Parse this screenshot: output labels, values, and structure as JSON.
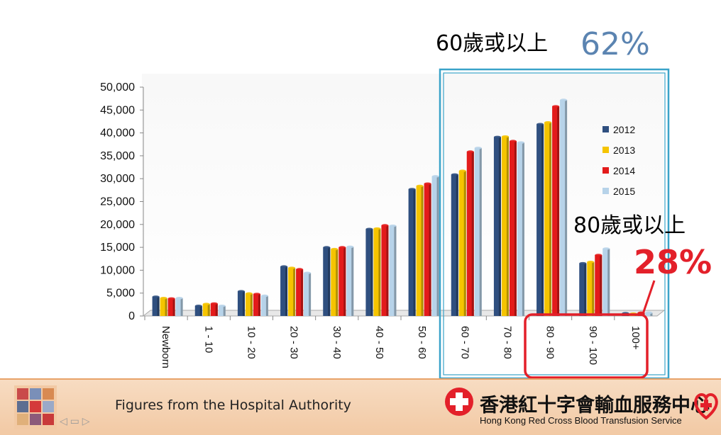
{
  "chart_data": {
    "type": "bar",
    "categories": [
      "Newborn",
      "1 - 10",
      "10 - 20",
      "20 - 30",
      "30 - 40",
      "40 - 50",
      "50 - 60",
      "60 - 70",
      "70 - 80",
      "80 - 90",
      "90 - 100",
      "100+"
    ],
    "series": [
      {
        "name": "2012",
        "color": "#2f4f7f",
        "values": [
          4200,
          2200,
          5400,
          10800,
          15000,
          19000,
          27700,
          30900,
          39100,
          41900,
          11500,
          600
        ]
      },
      {
        "name": "2013",
        "color": "#f5c400",
        "values": [
          3900,
          2600,
          4900,
          10500,
          14600,
          19100,
          28400,
          31700,
          39200,
          42300,
          11800,
          500
        ]
      },
      {
        "name": "2014",
        "color": "#e31b1b",
        "values": [
          3800,
          2700,
          4800,
          10200,
          15000,
          19800,
          28900,
          35900,
          38200,
          45800,
          13300,
          700
        ]
      },
      {
        "name": "2015",
        "color": "#b7d3e9",
        "values": [
          3900,
          2200,
          4400,
          9400,
          15100,
          19700,
          30500,
          36700,
          37900,
          47200,
          14700,
          700
        ]
      }
    ],
    "yticks": [
      "50,000",
      "45,000",
      "40,000",
      "35,000",
      "30,000",
      "25,000",
      "20,000",
      "15,000",
      "10,000",
      "5,000",
      "0"
    ],
    "ylim": [
      0,
      50000
    ],
    "title": "",
    "xlabel": "",
    "ylabel": "",
    "legend_position": "right",
    "annotations": {
      "over60_label": "60歲或以上",
      "over60_value": "62%",
      "over80_label": "80歲或以上",
      "over80_value": "28%"
    }
  },
  "footer": {
    "note": "Figures from the Hospital Authority",
    "org_name_zh": "香港紅十字會輸血服務中心",
    "org_name_en": "Hong Kong Red Cross Blood Transfusion Service",
    "nav_arrows": "◁ ▭ ▷"
  },
  "colors": {
    "highlight_blue": "#3aa3c9",
    "highlight_red": "#e3202a",
    "brand_red": "#e3202a"
  }
}
